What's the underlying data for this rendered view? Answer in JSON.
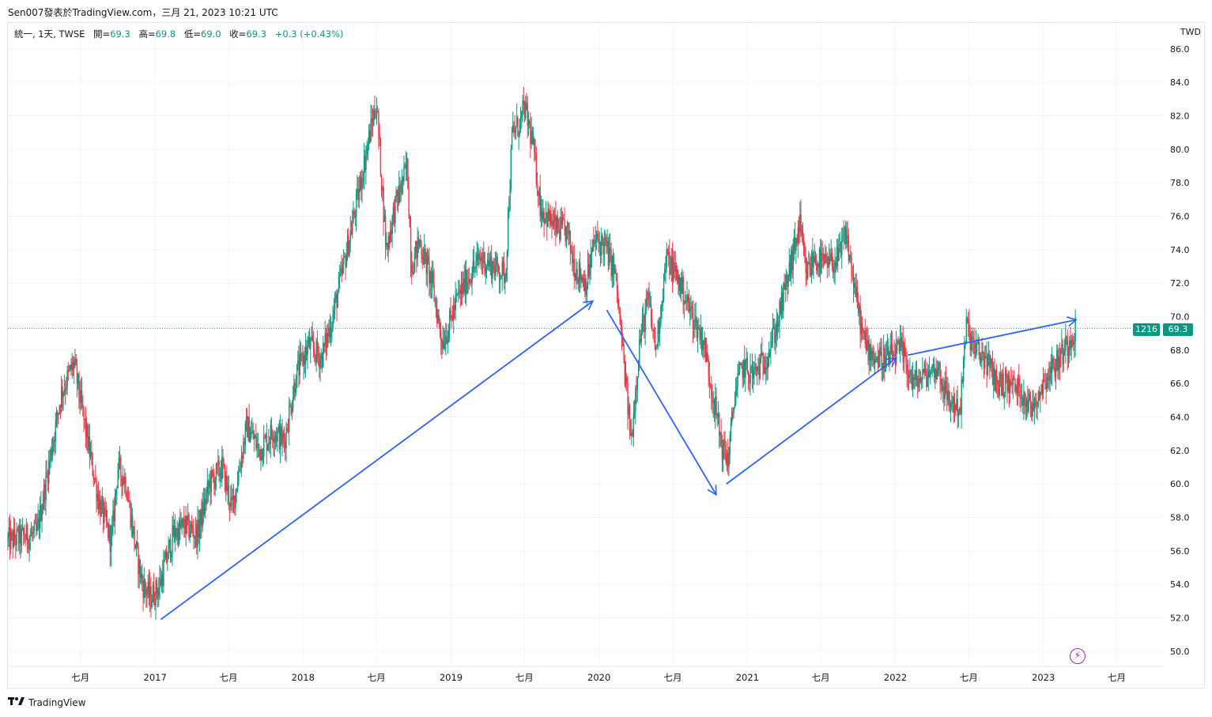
{
  "header": {
    "publish_line": "Sen007發表於TradingView.com，三月 21, 2023 10:21 UTC"
  },
  "legend": {
    "symbol": "統一, 1天, TWSE",
    "open_label": "開=",
    "open_value": "69.3",
    "high_label": "高=",
    "high_value": "69.8",
    "low_label": "低=",
    "low_value": "69.0",
    "close_label": "收=",
    "close_value": "69.3",
    "change": "+0.3 (+0.43%)"
  },
  "currency": "TWD",
  "last_price": {
    "countdown": "1216",
    "value": "69.3",
    "color": "#089981"
  },
  "footer": {
    "brand": "TradingView",
    "logo_text": "17"
  },
  "colors": {
    "up": "#089981",
    "down": "#f23645",
    "arrows": "#2962ff",
    "grid": "#f0f3fa",
    "bolt": "#9c27b0"
  },
  "icons": {
    "bolt": "lightning-bolt-icon",
    "logo": "tradingview-logo-icon"
  },
  "chart_data": {
    "type": "candlestick",
    "y_axis_labels": [
      "86.0",
      "84.0",
      "82.0",
      "80.0",
      "78.0",
      "76.0",
      "74.0",
      "72.0",
      "70.0",
      "68.0",
      "66.0",
      "64.0",
      "62.0",
      "60.0",
      "58.0",
      "56.0",
      "54.0",
      "52.0",
      "50.0"
    ],
    "x_axis_labels": [
      "七月",
      "2017",
      "七月",
      "2018",
      "七月",
      "2019",
      "七月",
      "2020",
      "七月",
      "2021",
      "七月",
      "2022",
      "七月",
      "2023",
      "七月"
    ],
    "x_axis_dates": [
      "2016-07-01",
      "2017-01-01",
      "2017-07-01",
      "2018-01-01",
      "2018-07-01",
      "2019-01-01",
      "2019-07-01",
      "2020-01-01",
      "2020-07-01",
      "2021-01-01",
      "2021-07-01",
      "2022-01-01",
      "2022-07-01",
      "2023-01-01",
      "2023-07-01"
    ],
    "x_range": [
      "2016-01-04",
      "2023-10-25"
    ],
    "ylim": [
      49.4,
      87.0
    ],
    "price_path": [
      [
        "2016-01-04",
        56.6
      ],
      [
        "2016-03-15",
        57.0
      ],
      [
        "2016-05-15",
        65.5
      ],
      [
        "2016-06-15",
        67.2
      ],
      [
        "2016-07-15",
        63.0
      ],
      [
        "2016-08-15",
        59.0
      ],
      [
        "2016-09-15",
        56.5
      ],
      [
        "2016-10-01",
        61.0
      ],
      [
        "2016-10-20",
        60.2
      ],
      [
        "2016-11-15",
        56.0
      ],
      [
        "2016-12-01",
        54.0
      ],
      [
        "2016-12-20",
        53.2
      ],
      [
        "2017-01-10",
        53.8
      ],
      [
        "2017-02-15",
        57.0
      ],
      [
        "2017-03-15",
        57.5
      ],
      [
        "2017-04-15",
        57.0
      ],
      [
        "2017-05-15",
        60.0
      ],
      [
        "2017-06-15",
        61.0
      ],
      [
        "2017-07-10",
        58.5
      ],
      [
        "2017-08-15",
        63.5
      ],
      [
        "2017-09-15",
        62.0
      ],
      [
        "2017-10-20",
        63.2
      ],
      [
        "2017-11-15",
        62.5
      ],
      [
        "2017-12-15",
        66.5
      ],
      [
        "2018-01-15",
        68.3
      ],
      [
        "2018-02-15",
        67.5
      ],
      [
        "2018-03-15",
        70.0
      ],
      [
        "2018-04-15",
        73.5
      ],
      [
        "2018-05-15",
        77.0
      ],
      [
        "2018-06-15",
        81.0
      ],
      [
        "2018-07-01",
        82.8
      ],
      [
        "2018-07-25",
        74.0
      ],
      [
        "2018-08-15",
        76.5
      ],
      [
        "2018-09-15",
        79.0
      ],
      [
        "2018-09-25",
        73.0
      ],
      [
        "2018-10-15",
        74.5
      ],
      [
        "2018-11-15",
        72.0
      ],
      [
        "2018-12-10",
        68.5
      ],
      [
        "2018-12-25",
        69.3
      ],
      [
        "2019-01-15",
        71.0
      ],
      [
        "2019-02-15",
        72.5
      ],
      [
        "2019-03-15",
        73.5
      ],
      [
        "2019-04-15",
        73.0
      ],
      [
        "2019-05-15",
        72.5
      ],
      [
        "2019-06-01",
        81.0
      ],
      [
        "2019-06-20",
        81.5
      ],
      [
        "2019-07-01",
        82.5
      ],
      [
        "2019-07-20",
        80.5
      ],
      [
        "2019-08-10",
        76.5
      ],
      [
        "2019-09-15",
        75.3
      ],
      [
        "2019-10-15",
        75.0
      ],
      [
        "2019-11-01",
        73.0
      ],
      [
        "2019-12-01",
        72.0
      ],
      [
        "2019-12-20",
        74.5
      ],
      [
        "2020-01-15",
        74.3
      ],
      [
        "2020-02-10",
        72.5
      ],
      [
        "2020-03-01",
        67.5
      ],
      [
        "2020-03-20",
        62.5
      ],
      [
        "2020-04-10",
        68.5
      ],
      [
        "2020-05-01",
        71.0
      ],
      [
        "2020-05-20",
        68.0
      ],
      [
        "2020-06-15",
        73.5
      ],
      [
        "2020-07-10",
        72.5
      ],
      [
        "2020-08-10",
        70.5
      ],
      [
        "2020-09-15",
        68.5
      ],
      [
        "2020-10-10",
        65.0
      ],
      [
        "2020-11-01",
        62.0
      ],
      [
        "2020-11-15",
        61.5
      ],
      [
        "2020-12-01",
        65.5
      ],
      [
        "2020-12-20",
        67.0
      ],
      [
        "2021-01-15",
        66.5
      ],
      [
        "2021-02-15",
        67.5
      ],
      [
        "2021-03-15",
        69.5
      ],
      [
        "2021-04-15",
        72.8
      ],
      [
        "2021-05-10",
        75.5
      ],
      [
        "2021-05-25",
        72.5
      ],
      [
        "2021-06-15",
        73.5
      ],
      [
        "2021-07-15",
        73.0
      ],
      [
        "2021-08-15",
        73.5
      ],
      [
        "2021-09-01",
        75.0
      ],
      [
        "2021-09-20",
        72.0
      ],
      [
        "2021-10-15",
        68.5
      ],
      [
        "2021-11-15",
        67.5
      ],
      [
        "2021-12-15",
        67.5
      ],
      [
        "2022-01-15",
        68.0
      ],
      [
        "2022-02-15",
        66.0
      ],
      [
        "2022-03-15",
        66.5
      ],
      [
        "2022-04-15",
        67.0
      ],
      [
        "2022-05-10",
        65.0
      ],
      [
        "2022-06-10",
        64.5
      ],
      [
        "2022-06-25",
        69.5
      ],
      [
        "2022-07-15",
        68.0
      ],
      [
        "2022-08-10",
        67.5
      ],
      [
        "2022-09-10",
        66.0
      ],
      [
        "2022-10-10",
        66.0
      ],
      [
        "2022-11-10",
        65.5
      ],
      [
        "2022-12-01",
        64.5
      ],
      [
        "2023-01-10",
        66.5
      ],
      [
        "2023-02-10",
        67.5
      ],
      [
        "2023-03-21",
        69.3
      ]
    ],
    "annotations": [
      {
        "type": "arrow",
        "from": [
          "2017-01-15",
          51.9
        ],
        "to": [
          "2019-12-15",
          70.9
        ]
      },
      {
        "type": "arrow",
        "from": [
          "2020-01-20",
          70.4
        ],
        "to": [
          "2020-10-15",
          59.4
        ]
      },
      {
        "type": "arrow",
        "from": [
          "2020-11-10",
          60.0
        ],
        "to": [
          "2022-01-01",
          67.5
        ]
      },
      {
        "type": "arrow",
        "from": [
          "2022-02-01",
          67.7
        ],
        "to": [
          "2023-03-21",
          69.8
        ]
      }
    ]
  }
}
